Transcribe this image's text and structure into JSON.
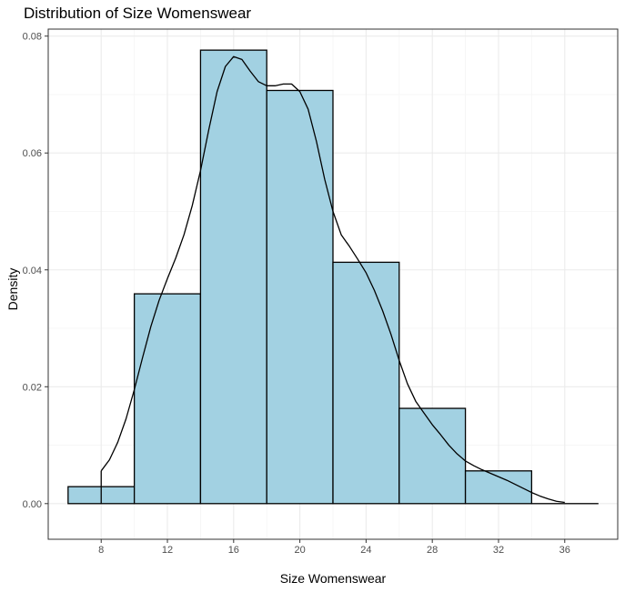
{
  "chart_data": {
    "type": "bar",
    "title": "Distribution of Size Womenswear",
    "xlabel": "Size Womenswear",
    "ylabel": "Density",
    "xlim": [
      4.8,
      39.2
    ],
    "ylim": [
      -0.0061,
      0.0812
    ],
    "x_ticks": [
      8,
      12,
      16,
      20,
      24,
      28,
      32,
      36
    ],
    "y_ticks": [
      0.0,
      0.02,
      0.04,
      0.06,
      0.08
    ],
    "y_tick_labels": [
      "0.00",
      "0.02",
      "0.04",
      "0.06",
      "0.08"
    ],
    "grid": true,
    "histogram_bins": [
      {
        "x0": 6,
        "x1": 10,
        "density": 0.0029
      },
      {
        "x0": 10,
        "x1": 14,
        "density": 0.0359
      },
      {
        "x0": 14,
        "x1": 18,
        "density": 0.0776
      },
      {
        "x0": 18,
        "x1": 22,
        "density": 0.0707
      },
      {
        "x0": 22,
        "x1": 26,
        "density": 0.0413
      },
      {
        "x0": 26,
        "x1": 30,
        "density": 0.0163
      },
      {
        "x0": 30,
        "x1": 34,
        "density": 0.0056
      },
      {
        "x0": 34,
        "x1": 38,
        "density": 0.0
      }
    ],
    "density_curve": {
      "x": [
        8,
        8.5,
        9,
        9.5,
        10,
        10.5,
        11,
        11.5,
        12,
        12.5,
        13,
        13.5,
        14,
        14.5,
        15,
        15.5,
        16,
        16.5,
        17,
        17.5,
        18,
        18.5,
        19,
        19.5,
        20,
        20.5,
        21,
        21.5,
        22,
        22.5,
        23,
        23.5,
        24,
        24.5,
        25,
        25.5,
        26,
        26.5,
        27,
        27.5,
        28,
        28.5,
        29,
        29.5,
        30,
        30.5,
        31,
        31.5,
        32,
        32.5,
        33,
        33.5,
        34,
        34.5,
        35,
        35.5,
        36
      ],
      "y": [
        0.0056,
        0.0075,
        0.0105,
        0.0145,
        0.0195,
        0.025,
        0.0303,
        0.0348,
        0.0385,
        0.042,
        0.046,
        0.051,
        0.057,
        0.064,
        0.0705,
        0.0748,
        0.0765,
        0.076,
        0.074,
        0.0722,
        0.0715,
        0.0715,
        0.0718,
        0.0718,
        0.0705,
        0.0675,
        0.062,
        0.0555,
        0.05,
        0.046,
        0.044,
        0.0418,
        0.0395,
        0.0365,
        0.033,
        0.029,
        0.0245,
        0.0205,
        0.0175,
        0.0155,
        0.0135,
        0.0118,
        0.01,
        0.0085,
        0.0073,
        0.0065,
        0.0058,
        0.0052,
        0.0046,
        0.004,
        0.0033,
        0.0026,
        0.0019,
        0.0013,
        0.0008,
        0.0004,
        0.0002
      ]
    },
    "colors": {
      "bar_fill": "#a2d1e2",
      "bar_stroke": "#000000",
      "curve": "#000000",
      "grid_major": "#ebebeb",
      "grid_minor": "#f5f5f5",
      "panel_border": "#333333"
    }
  }
}
